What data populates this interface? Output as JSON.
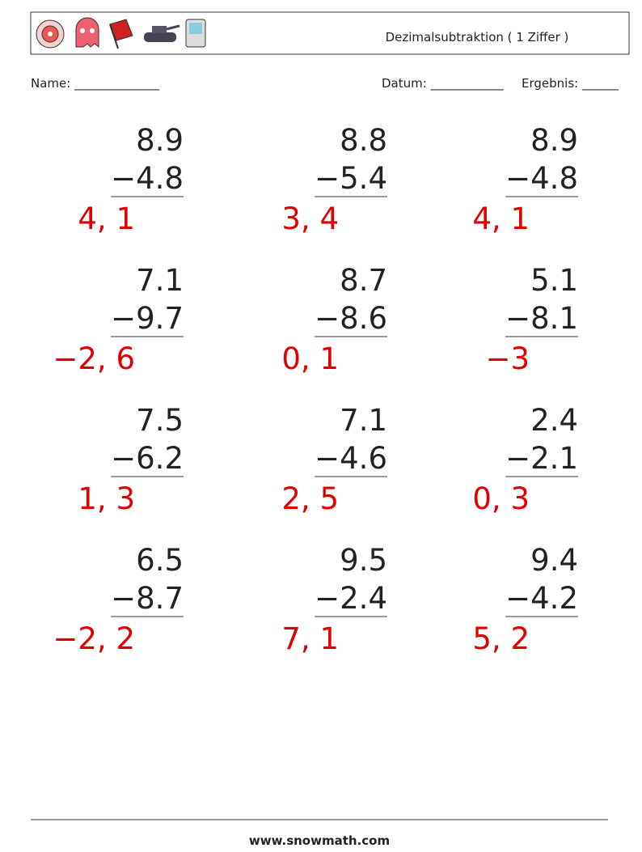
{
  "header": {
    "title": "Dezimalsubtraktion ( 1 Ziffer )"
  },
  "fields": {
    "name": "Name: ______________",
    "date": "Datum: ____________",
    "result": "Ergebnis: ______"
  },
  "problems": [
    {
      "top": "8.9",
      "bottom": "−4.8",
      "answer": "4, 1"
    },
    {
      "top": "8.8",
      "bottom": "−5.4",
      "answer": "3, 4"
    },
    {
      "top": "8.9",
      "bottom": "−4.8",
      "answer": "4, 1"
    },
    {
      "top": "7.1",
      "bottom": "−9.7",
      "answer": "−2, 6"
    },
    {
      "top": "8.7",
      "bottom": "−8.6",
      "answer": "0, 1"
    },
    {
      "top": "5.1",
      "bottom": "−8.1",
      "answer": "−3"
    },
    {
      "top": "7.5",
      "bottom": "−6.2",
      "answer": "1, 3"
    },
    {
      "top": "7.1",
      "bottom": "−4.6",
      "answer": "2, 5"
    },
    {
      "top": "2.4",
      "bottom": "−2.1",
      "answer": "0, 3"
    },
    {
      "top": "6.5",
      "bottom": "−8.7",
      "answer": "−2, 2"
    },
    {
      "top": "9.5",
      "bottom": "−2.4",
      "answer": "7, 1"
    },
    {
      "top": "9.4",
      "bottom": "−4.2",
      "answer": "5, 2"
    }
  ],
  "footer": {
    "url": "www.snowmath.com"
  }
}
